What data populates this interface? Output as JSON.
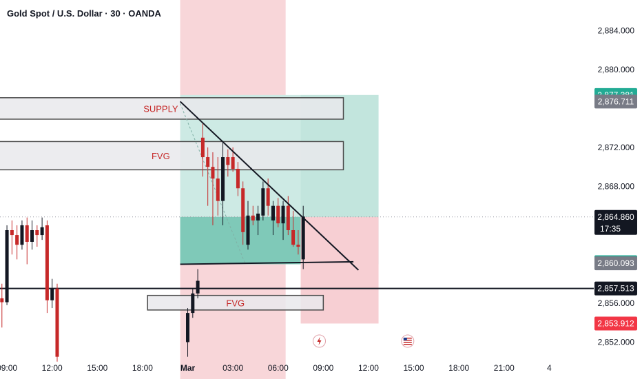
{
  "title": "Gold Spot / U.S. Dollar · 30 · OANDA",
  "zones": {
    "supply": "SUPPLY",
    "fvg_top": "FVG",
    "fvg_bottom": "FVG"
  },
  "colors": {
    "bull": "#131722",
    "bear": "#c62828",
    "tp_zone": "#cdeae4",
    "tp_zone_dark": "#7fc9b8",
    "sl_zone": "#f7cfd3",
    "badge_green": "#22ab94",
    "badge_red": "#f23645",
    "badge_gray": "#787b86",
    "badge_black": "#131722"
  },
  "icons": [
    "lightning-event-icon",
    "us-flag-event-icon"
  ],
  "chart_data": {
    "type": "candlestick",
    "title": "Gold Spot / U.S. Dollar · 30 · OANDA",
    "ylim": [
      2850.2,
      2886.0
    ],
    "y_ticks": [
      2852.0,
      2856.0,
      2868.0,
      2872.0,
      2880.0,
      2884.0
    ],
    "y_tick_labels": [
      "2,852.000",
      "2,856.000",
      "2,868.000",
      "2,872.000",
      "2,880.000",
      "2,884.000"
    ],
    "x_tick_labels": [
      "09:00",
      "12:00",
      "15:00",
      "18:00",
      "Mar",
      "03:00",
      "06:00",
      "09:00",
      "12:00",
      "15:00",
      "18:00",
      "21:00",
      "4"
    ],
    "x_tick_index": [
      2,
      11,
      20,
      29,
      38,
      47,
      56,
      65,
      74,
      83,
      92,
      101,
      110
    ],
    "grid": false,
    "price_badges": [
      {
        "value": "2,877.381",
        "price": 2877.381,
        "kind": "green"
      },
      {
        "value": "2,876.711",
        "price": 2876.711,
        "kind": "gray"
      },
      {
        "value": "2,864.860",
        "price": 2864.86,
        "kind": "black",
        "sub": "17:35"
      },
      {
        "value": "2,860.210",
        "price": 2860.21,
        "kind": "green"
      },
      {
        "value": "2,860.093",
        "price": 2860.093,
        "kind": "gray"
      },
      {
        "value": "2,857.513",
        "price": 2857.513,
        "kind": "black"
      },
      {
        "value": "2,853.912",
        "price": 2853.912,
        "kind": "red"
      }
    ],
    "candles": [
      {
        "t": 0,
        "o": 2856.0,
        "h": 2858.5,
        "l": 2855.5,
        "c": 2856.5
      },
      {
        "t": 1,
        "o": 2856.5,
        "h": 2858.0,
        "l": 2853.5,
        "c": 2856.1
      },
      {
        "t": 2,
        "o": 2856.1,
        "h": 2864.0,
        "l": 2855.8,
        "c": 2863.5
      },
      {
        "t": 3,
        "o": 2863.5,
        "h": 2864.5,
        "l": 2861.0,
        "c": 2863.0
      },
      {
        "t": 4,
        "o": 2863.0,
        "h": 2864.0,
        "l": 2860.5,
        "c": 2862.0
      },
      {
        "t": 5,
        "o": 2862.0,
        "h": 2864.5,
        "l": 2861.5,
        "c": 2864.0
      },
      {
        "t": 6,
        "o": 2864.0,
        "h": 2864.8,
        "l": 2860.0,
        "c": 2862.3
      },
      {
        "t": 7,
        "o": 2862.3,
        "h": 2864.5,
        "l": 2861.5,
        "c": 2863.5
      },
      {
        "t": 8,
        "o": 2863.5,
        "h": 2864.0,
        "l": 2861.8,
        "c": 2863.0
      },
      {
        "t": 9,
        "o": 2863.0,
        "h": 2864.8,
        "l": 2862.5,
        "c": 2863.8
      },
      {
        "t": 10,
        "o": 2864.0,
        "h": 2864.5,
        "l": 2855.0,
        "c": 2856.3
      },
      {
        "t": 11,
        "o": 2856.3,
        "h": 2858.5,
        "l": 2855.5,
        "c": 2857.5
      },
      {
        "t": 12,
        "o": 2857.5,
        "h": 2858.0,
        "l": 2850.0,
        "c": 2850.5
      },
      {
        "t": 38,
        "o": 2852.0,
        "h": 2855.5,
        "l": 2850.5,
        "c": 2855.0
      },
      {
        "t": 39,
        "o": 2855.0,
        "h": 2857.5,
        "l": 2854.5,
        "c": 2857.0
      },
      {
        "t": 40,
        "o": 2857.0,
        "h": 2859.5,
        "l": 2856.5,
        "c": 2858.3
      },
      {
        "t": 41,
        "o": 2873.0,
        "h": 2874.5,
        "l": 2869.0,
        "c": 2871.0
      },
      {
        "t": 42,
        "o": 2871.0,
        "h": 2872.0,
        "l": 2866.0,
        "c": 2870.0
      },
      {
        "t": 43,
        "o": 2870.0,
        "h": 2871.5,
        "l": 2864.0,
        "c": 2868.8
      },
      {
        "t": 44,
        "o": 2868.8,
        "h": 2871.0,
        "l": 2865.0,
        "c": 2866.5
      },
      {
        "t": 45,
        "o": 2866.5,
        "h": 2872.5,
        "l": 2864.0,
        "c": 2871.0
      },
      {
        "t": 46,
        "o": 2871.0,
        "h": 2871.8,
        "l": 2869.0,
        "c": 2870.2
      },
      {
        "t": 47,
        "o": 2871.0,
        "h": 2872.0,
        "l": 2869.5,
        "c": 2869.8
      },
      {
        "t": 48,
        "o": 2869.8,
        "h": 2870.5,
        "l": 2867.0,
        "c": 2867.8
      },
      {
        "t": 49,
        "o": 2867.8,
        "h": 2868.5,
        "l": 2862.0,
        "c": 2863.3
      },
      {
        "t": 50,
        "o": 2862.0,
        "h": 2866.5,
        "l": 2861.5,
        "c": 2865.0
      },
      {
        "t": 51,
        "o": 2865.0,
        "h": 2866.0,
        "l": 2864.0,
        "c": 2864.5
      },
      {
        "t": 52,
        "o": 2864.5,
        "h": 2866.0,
        "l": 2863.0,
        "c": 2865.2
      },
      {
        "t": 53,
        "o": 2865.0,
        "h": 2868.5,
        "l": 2864.5,
        "c": 2867.8
      },
      {
        "t": 54,
        "o": 2867.8,
        "h": 2868.8,
        "l": 2865.0,
        "c": 2866.0
      },
      {
        "t": 55,
        "o": 2864.5,
        "h": 2866.5,
        "l": 2863.0,
        "c": 2866.0
      },
      {
        "t": 56,
        "o": 2866.0,
        "h": 2866.8,
        "l": 2863.8,
        "c": 2864.2
      },
      {
        "t": 57,
        "o": 2864.2,
        "h": 2866.5,
        "l": 2862.5,
        "c": 2866.0
      },
      {
        "t": 58,
        "o": 2866.0,
        "h": 2867.0,
        "l": 2863.0,
        "c": 2863.5
      },
      {
        "t": 59,
        "o": 2863.5,
        "h": 2865.5,
        "l": 2861.8,
        "c": 2862.0
      },
      {
        "t": 60,
        "o": 2862.0,
        "h": 2863.5,
        "l": 2861.0,
        "c": 2861.8
      },
      {
        "t": 61,
        "o": 2860.5,
        "h": 2866.0,
        "l": 2859.5,
        "c": 2864.9
      }
    ],
    "annotations": {
      "supply_zone": {
        "label": "SUPPLY",
        "t0": -1,
        "t1": 69,
        "top": 2877.1,
        "bottom": 2874.9
      },
      "fvg_zone_top": {
        "label": "FVG",
        "t0": -1,
        "t1": 69,
        "top": 2872.6,
        "bottom": 2869.7
      },
      "fvg_zone_bottom": {
        "label": "FVG",
        "t0": 30,
        "t1": 65,
        "top": 2856.8,
        "bottom": 2855.3
      },
      "horizontal_line": {
        "price": 2857.513
      },
      "triangle_upper": {
        "t0": 36.5,
        "p0": 2876.711,
        "t1": 72,
        "p1": 2859.4
      },
      "triangle_lower": {
        "t0": 36.5,
        "p0": 2860.0,
        "t1": 71,
        "p1": 2860.25
      },
      "highlight_band": {
        "t0": 36.5,
        "t1": 57.5
      },
      "position_entry": {
        "t0": 36.5,
        "t1": 76,
        "price": 2864.86
      },
      "position_target": {
        "price": 2877.381
      },
      "position_stop": {
        "price": 2853.912
      },
      "position_start_2": 60.5
    }
  }
}
